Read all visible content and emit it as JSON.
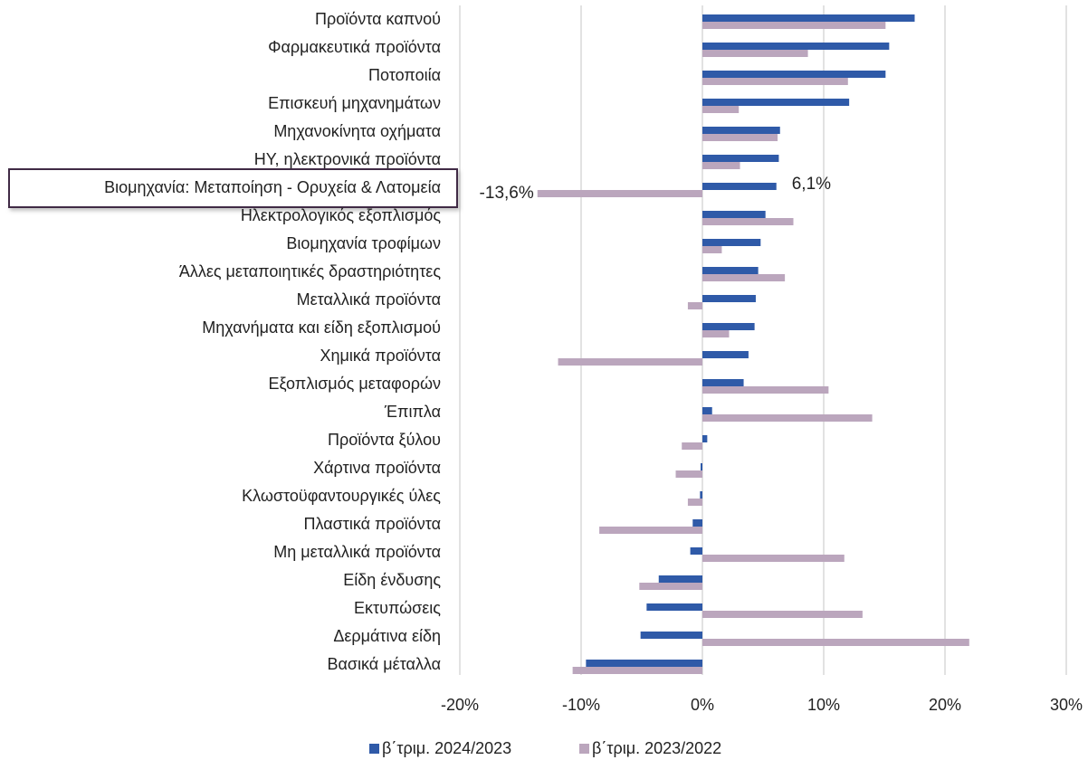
{
  "chart_data": {
    "type": "bar",
    "orientation": "horizontal",
    "categories": [
      "Προϊόντα καπνού",
      "Φαρμακευτικά προϊόντα",
      "Ποτοποιία",
      "Επισκευή μηχανημάτων",
      "Μηχανοκίνητα οχήματα",
      "ΗΥ, ηλεκτρονικά προϊόντα",
      "Βιομηχανία: Μεταποίηση - Ορυχεία & Λατομεία",
      "Ηλεκτρολογικός εξοπλισμός",
      "Βιομηχανία τροφίμων",
      "Άλλες μεταποιητικές δραστηριότητες",
      "Μεταλλικά προϊόντα",
      "Μηχανήματα και είδη εξοπλισμού",
      "Χημικά προϊόντα",
      "Εξοπλισμός μεταφορών",
      "Έπιπλα",
      "Προϊόντα ξύλου",
      "Χάρτινα προϊόντα",
      "Κλωστοϋφαντουργικές ύλες",
      "Πλαστικά προϊόντα",
      "Μη μεταλλικά προϊόντα",
      "Είδη ένδυσης",
      "Εκτυπώσεις",
      "Δερμάτινα είδη",
      "Βασικά μέταλλα"
    ],
    "series": [
      {
        "name": "β΄τριμ. 2024/2023",
        "color": "#2f5aa8",
        "values": [
          17.5,
          15.4,
          15.1,
          12.1,
          6.4,
          6.3,
          6.1,
          5.2,
          4.8,
          4.6,
          4.4,
          4.3,
          3.8,
          3.4,
          0.8,
          0.4,
          -0.15,
          -0.2,
          -0.8,
          -1.0,
          -3.6,
          -4.6,
          -5.1,
          -9.6
        ],
        "value_labels": [
          null,
          null,
          null,
          null,
          null,
          null,
          "6,1%",
          null,
          null,
          null,
          null,
          null,
          null,
          null,
          null,
          null,
          null,
          null,
          null,
          null,
          null,
          null,
          null,
          null
        ]
      },
      {
        "name": "β΄τριμ. 2023/2022",
        "color": "#bba6bd",
        "values": [
          15.1,
          8.7,
          12.0,
          3.0,
          6.2,
          3.1,
          -13.6,
          7.5,
          1.6,
          6.8,
          -1.2,
          2.2,
          -11.9,
          10.4,
          14.0,
          -1.7,
          -2.2,
          -1.2,
          -8.5,
          11.7,
          -5.2,
          13.2,
          22.0,
          -10.7
        ],
        "value_labels": [
          null,
          null,
          null,
          null,
          null,
          null,
          "-13,6%",
          null,
          null,
          null,
          null,
          null,
          null,
          null,
          null,
          null,
          null,
          null,
          null,
          null,
          null,
          null,
          null,
          null
        ]
      }
    ],
    "highlight_category": 6,
    "xlim": [
      -20,
      30
    ],
    "xticks": [
      {
        "value": -20,
        "label": "-20%"
      },
      {
        "value": -10,
        "label": "-10%"
      },
      {
        "value": 0,
        "label": "0%"
      },
      {
        "value": 10,
        "label": "10%"
      },
      {
        "value": 20,
        "label": "20%"
      },
      {
        "value": 30,
        "label": "30%"
      }
    ],
    "grid": true,
    "legend": "bottom"
  }
}
